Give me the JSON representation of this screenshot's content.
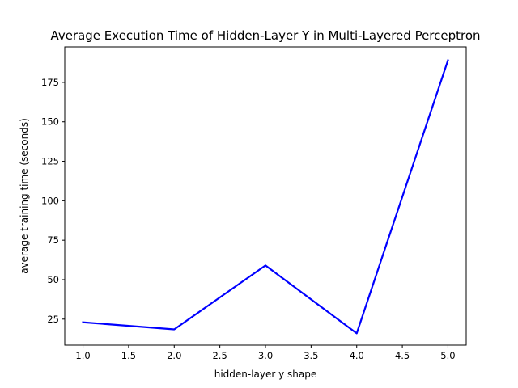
{
  "chart_data": {
    "type": "line",
    "title": "Average Execution Time of Hidden-Layer Y in Multi-Layered Perceptron",
    "xlabel": "hidden-layer y shape",
    "ylabel": "average training time (seconds)",
    "xlim": [
      0.8,
      5.2
    ],
    "ylim": [
      8.5,
      197.5
    ],
    "xticks": [
      1.0,
      1.5,
      2.0,
      2.5,
      3.0,
      3.5,
      4.0,
      4.5,
      5.0
    ],
    "xtick_labels": [
      "1.0",
      "1.5",
      "2.0",
      "2.5",
      "3.0",
      "3.5",
      "4.0",
      "4.5",
      "5.0"
    ],
    "yticks": [
      25,
      50,
      75,
      100,
      125,
      150,
      175
    ],
    "ytick_labels": [
      "25",
      "50",
      "75",
      "100",
      "125",
      "150",
      "175"
    ],
    "grid": false,
    "series": [
      {
        "color": "#0000ff",
        "x": [
          1,
          2,
          3,
          4,
          5
        ],
        "y": [
          23,
          18.5,
          59,
          16,
          189
        ]
      }
    ]
  }
}
